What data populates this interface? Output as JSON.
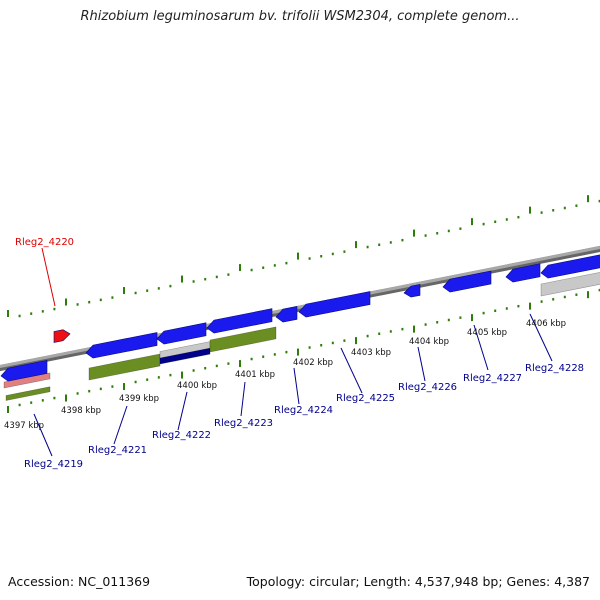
{
  "title": "Rhizobium leguminosarum bv. trifolii WSM2304, complete genom...",
  "footer": {
    "accession": "Accession: NC_011369",
    "meta": "Topology: circular; Length: 4,537,948 bp; Genes: 4,387"
  },
  "colors": {
    "gene_blue": "#1a1aee",
    "gene_red": "#ee1111",
    "feature_green": "#6b8e23",
    "feature_gray": "#c8c8c8",
    "feature_pink": "#e08080",
    "dark_blue": "#00008b",
    "backbone": "#888888",
    "tick_green": "#2e7d0a",
    "label_blue": "#00008b",
    "label_red": "#dd0000"
  },
  "kbp_labels": [
    "4397 kbp",
    "4398 kbp",
    "4399 kbp",
    "4400 kbp",
    "4401 kbp",
    "4402 kbp",
    "4403 kbp",
    "4404 kbp",
    "4405 kbp",
    "4406 kbp"
  ],
  "gene_labels": {
    "red": [
      "Rleg2_4220"
    ],
    "blue": [
      "Rleg2_4219",
      "Rleg2_4221",
      "Rleg2_4222",
      "Rleg2_4223",
      "Rleg2_4224",
      "Rleg2_4225",
      "Rleg2_4226",
      "Rleg2_4227",
      "Rleg2_4228"
    ]
  }
}
